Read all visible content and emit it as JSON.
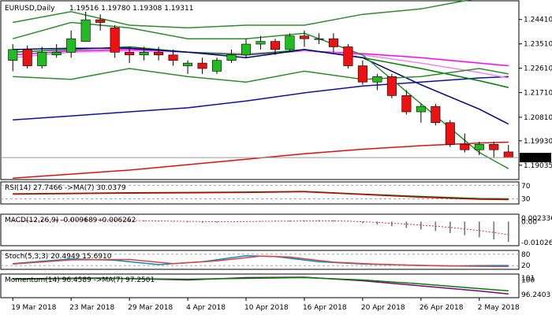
{
  "chart_data": {
    "type": "candlestick",
    "title": "EURUSD,Daily",
    "ohlc_text": "1.19516 1.19780 1.19308 1.19311",
    "current_price": 1.19311,
    "current_price_label": "1.19311",
    "ylim": [
      1.185,
      1.251
    ],
    "y_ticks": [
      1.2441,
      1.2351,
      1.2261,
      1.2171,
      1.208,
      1.1993,
      1.1903
    ],
    "y_tick_labels": [
      "1.24410",
      "1.23510",
      "1.22610",
      "1.21710",
      "1.20810",
      "1.19930",
      "1.19035"
    ],
    "x_labels": [
      {
        "i": 0,
        "text": "19 Mar 2018"
      },
      {
        "i": 4,
        "text": "23 Mar 2018"
      },
      {
        "i": 8,
        "text": "29 Mar 2018"
      },
      {
        "i": 12,
        "text": "4 Apr 2018"
      },
      {
        "i": 16,
        "text": "10 Apr 2018"
      },
      {
        "i": 20,
        "text": "16 Apr 2018"
      },
      {
        "i": 24,
        "text": "20 Apr 2018"
      },
      {
        "i": 28,
        "text": "26 Apr 2018"
      },
      {
        "i": 32,
        "text": "2 May 2018"
      }
    ],
    "candles": [
      {
        "o": 1.229,
        "h": 1.235,
        "l": 1.225,
        "c": 1.233
      },
      {
        "o": 1.233,
        "h": 1.2345,
        "l": 1.226,
        "c": 1.227
      },
      {
        "o": 1.227,
        "h": 1.234,
        "l": 1.226,
        "c": 1.232
      },
      {
        "o": 1.231,
        "h": 1.235,
        "l": 1.23,
        "c": 1.232
      },
      {
        "o": 1.232,
        "h": 1.24,
        "l": 1.23,
        "c": 1.237
      },
      {
        "o": 1.236,
        "h": 1.247,
        "l": 1.236,
        "c": 1.244
      },
      {
        "o": 1.244,
        "h": 1.246,
        "l": 1.24,
        "c": 1.243
      },
      {
        "o": 1.241,
        "h": 1.242,
        "l": 1.23,
        "c": 1.232
      },
      {
        "o": 1.232,
        "h": 1.234,
        "l": 1.228,
        "c": 1.231
      },
      {
        "o": 1.231,
        "h": 1.234,
        "l": 1.229,
        "c": 1.232
      },
      {
        "o": 1.232,
        "h": 1.234,
        "l": 1.229,
        "c": 1.231
      },
      {
        "o": 1.231,
        "h": 1.233,
        "l": 1.227,
        "c": 1.229
      },
      {
        "o": 1.227,
        "h": 1.229,
        "l": 1.224,
        "c": 1.228
      },
      {
        "o": 1.228,
        "h": 1.23,
        "l": 1.224,
        "c": 1.226
      },
      {
        "o": 1.225,
        "h": 1.23,
        "l": 1.224,
        "c": 1.229
      },
      {
        "o": 1.229,
        "h": 1.233,
        "l": 1.228,
        "c": 1.231
      },
      {
        "o": 1.231,
        "h": 1.237,
        "l": 1.23,
        "c": 1.235
      },
      {
        "o": 1.235,
        "h": 1.238,
        "l": 1.233,
        "c": 1.236
      },
      {
        "o": 1.236,
        "h": 1.237,
        "l": 1.231,
        "c": 1.233
      },
      {
        "o": 1.233,
        "h": 1.239,
        "l": 1.232,
        "c": 1.238
      },
      {
        "o": 1.238,
        "h": 1.24,
        "l": 1.234,
        "c": 1.237
      },
      {
        "o": 1.237,
        "h": 1.239,
        "l": 1.235,
        "c": 1.237
      },
      {
        "o": 1.237,
        "h": 1.239,
        "l": 1.232,
        "c": 1.234
      },
      {
        "o": 1.234,
        "h": 1.235,
        "l": 1.226,
        "c": 1.227
      },
      {
        "o": 1.227,
        "h": 1.229,
        "l": 1.22,
        "c": 1.221
      },
      {
        "o": 1.221,
        "h": 1.224,
        "l": 1.218,
        "c": 1.223
      },
      {
        "o": 1.223,
        "h": 1.224,
        "l": 1.215,
        "c": 1.216
      },
      {
        "o": 1.216,
        "h": 1.218,
        "l": 1.209,
        "c": 1.21
      },
      {
        "o": 1.21,
        "h": 1.213,
        "l": 1.206,
        "c": 1.212
      },
      {
        "o": 1.212,
        "h": 1.213,
        "l": 1.205,
        "c": 1.206
      },
      {
        "o": 1.206,
        "h": 1.207,
        "l": 1.197,
        "c": 1.198
      },
      {
        "o": 1.198,
        "h": 1.202,
        "l": 1.195,
        "c": 1.196
      },
      {
        "o": 1.196,
        "h": 1.199,
        "l": 1.194,
        "c": 1.198
      },
      {
        "o": 1.198,
        "h": 1.199,
        "l": 1.193,
        "c": 1.196
      },
      {
        "o": 1.1952,
        "h": 1.1978,
        "l": 1.1931,
        "c": 1.1931
      }
    ],
    "overlays": [
      {
        "color": "#1010a0",
        "points": [
          [
            0,
            1.207
          ],
          [
            4,
            1.2085
          ],
          [
            8,
            1.21
          ],
          [
            12,
            1.2115
          ],
          [
            16,
            1.214
          ],
          [
            20,
            1.217
          ],
          [
            24,
            1.2195
          ],
          [
            28,
            1.221
          ],
          [
            32,
            1.2225
          ],
          [
            34,
            1.223
          ]
        ]
      },
      {
        "color": "#dd1010",
        "points": [
          [
            0,
            1.1855
          ],
          [
            4,
            1.187
          ],
          [
            8,
            1.1885
          ],
          [
            12,
            1.1905
          ],
          [
            16,
            1.1925
          ],
          [
            20,
            1.1945
          ],
          [
            24,
            1.1962
          ],
          [
            28,
            1.1975
          ],
          [
            32,
            1.1985
          ],
          [
            34,
            1.1988
          ]
        ]
      },
      {
        "color": "#ff00ff",
        "points": [
          [
            0,
            1.231
          ],
          [
            4,
            1.2325
          ],
          [
            8,
            1.233
          ],
          [
            12,
            1.232
          ],
          [
            16,
            1.231
          ],
          [
            20,
            1.2325
          ],
          [
            24,
            1.2315
          ],
          [
            28,
            1.23
          ],
          [
            32,
            1.228
          ],
          [
            34,
            1.227
          ]
        ]
      },
      {
        "color": "#ee88ee",
        "points": [
          [
            0,
            1.23
          ],
          [
            4,
            1.232
          ],
          [
            8,
            1.2325
          ],
          [
            12,
            1.232
          ],
          [
            16,
            1.2315
          ],
          [
            20,
            1.2325
          ],
          [
            24,
            1.231
          ],
          [
            28,
            1.228
          ],
          [
            32,
            1.2245
          ],
          [
            34,
            1.2225
          ]
        ]
      },
      {
        "color": "#008000",
        "points": [
          [
            0,
            1.232
          ],
          [
            4,
            1.233
          ],
          [
            8,
            1.234
          ],
          [
            12,
            1.232
          ],
          [
            16,
            1.231
          ],
          [
            20,
            1.233
          ],
          [
            24,
            1.23
          ],
          [
            28,
            1.226
          ],
          [
            32,
            1.2215
          ],
          [
            34,
            1.219
          ]
        ]
      },
      {
        "color": "#000080",
        "points": [
          [
            0,
            1.233
          ],
          [
            4,
            1.2335
          ],
          [
            8,
            1.2335
          ],
          [
            12,
            1.232
          ],
          [
            16,
            1.23
          ],
          [
            20,
            1.233
          ],
          [
            24,
            1.23
          ],
          [
            28,
            1.22
          ],
          [
            32,
            1.211
          ],
          [
            34,
            1.2055
          ]
        ]
      },
      {
        "color": "#2e8b2e",
        "points": [
          [
            0,
            1.237
          ],
          [
            4,
            1.243
          ],
          [
            8,
            1.241
          ],
          [
            12,
            1.237
          ],
          [
            16,
            1.237
          ],
          [
            20,
            1.239
          ],
          [
            24,
            1.231
          ],
          [
            28,
            1.213
          ],
          [
            32,
            1.195
          ],
          [
            34,
            1.189
          ]
        ]
      },
      {
        "color": "#2e8b2e",
        "points": [
          [
            0,
            1.243
          ],
          [
            4,
            1.247
          ],
          [
            8,
            1.242
          ],
          [
            12,
            1.241
          ],
          [
            16,
            1.242
          ],
          [
            20,
            1.242
          ],
          [
            24,
            1.246
          ],
          [
            28,
            1.248
          ],
          [
            30,
            1.25
          ],
          [
            32,
            1.252
          ]
        ]
      },
      {
        "color": "#2e8b2e",
        "points": [
          [
            0,
            1.223
          ],
          [
            4,
            1.222
          ],
          [
            8,
            1.226
          ],
          [
            12,
            1.223
          ],
          [
            16,
            1.221
          ],
          [
            20,
            1.225
          ],
          [
            24,
            1.222
          ],
          [
            28,
            1.223
          ],
          [
            32,
            1.226
          ],
          [
            34,
            1.224
          ]
        ]
      }
    ],
    "panels": [
      {
        "label": "RSI(14) 27.7466 ->MA(7) 30.0379",
        "ticks": [
          {
            "text": "70",
            "v": 70
          },
          {
            "text": "30",
            "v": 30
          }
        ],
        "lines": [
          {
            "color": "#008000",
            "points": [
              [
                0,
                45
              ],
              [
                8,
                48
              ],
              [
                16,
                50
              ],
              [
                20,
                52
              ],
              [
                24,
                44
              ],
              [
                28,
                37
              ],
              [
                32,
                31
              ],
              [
                34,
                30
              ]
            ]
          },
          {
            "color": "#c00000",
            "points": [
              [
                0,
                44
              ],
              [
                8,
                47
              ],
              [
                16,
                49
              ],
              [
                20,
                51
              ],
              [
                24,
                43
              ],
              [
                28,
                35
              ],
              [
                32,
                29
              ],
              [
                34,
                27.7
              ]
            ]
          }
        ]
      },
      {
        "label": "MACD(12,26,9) -0.009689 -0.006262",
        "ticks": [
          {
            "text": "0.002336",
            "v": 0.002336
          },
          {
            "text": "0.00",
            "v": 0
          },
          {
            "text": "-0.010262",
            "v": -0.010262
          }
        ],
        "bars": [
          0.0005,
          0.0008,
          0.001,
          0.0012,
          0.0015,
          0.0017,
          0.0016,
          0.0012,
          0.0008,
          0.0005,
          0.0002,
          -0.0002,
          -0.0004,
          -0.0006,
          -0.0005,
          -0.0002,
          0.0001,
          0.0003,
          0.0004,
          0.0005,
          0.0006,
          0.0007,
          0.0006,
          0.0003,
          -0.0008,
          -0.0015,
          -0.0022,
          -0.003,
          -0.0038,
          -0.0045,
          -0.0055,
          -0.0065,
          -0.0075,
          -0.0085,
          -0.0097
        ],
        "signal": [
          0.0003,
          0.0004,
          0.0005,
          0.0006,
          0.0007,
          0.0007,
          0.0007,
          0.0006,
          0.0005,
          0.0004,
          0.0003,
          0.0002,
          0.0001,
          0.0,
          -0.0001,
          -0.0001,
          0.0,
          0.0001,
          0.0002,
          0.0002,
          0.0003,
          0.0003,
          0.0003,
          0.0002,
          -0.0001,
          -0.0004,
          -0.0008,
          -0.0012,
          -0.0017,
          -0.0022,
          -0.0028,
          -0.0035,
          -0.0043,
          -0.0052,
          -0.0063
        ]
      },
      {
        "label": "Stoch(5,3,3) 20.4949 15.6910",
        "ticks": [
          {
            "text": "80",
            "v": 80
          },
          {
            "text": "20",
            "v": 20
          }
        ],
        "lines": [
          {
            "color": "#0090c0",
            "points": [
              [
                0,
                30
              ],
              [
                4,
                55
              ],
              [
                7,
                48
              ],
              [
                10,
                25
              ],
              [
                13,
                40
              ],
              [
                16,
                72
              ],
              [
                18,
                68
              ],
              [
                21,
                40
              ],
              [
                24,
                28
              ],
              [
                27,
                22
              ],
              [
                30,
                18
              ],
              [
                32,
                20
              ],
              [
                34,
                20.5
              ]
            ]
          },
          {
            "color": "#e04040",
            "points": [
              [
                0,
                28
              ],
              [
                4,
                50
              ],
              [
                8,
                52
              ],
              [
                11,
                30
              ],
              [
                14,
                45
              ],
              [
                17,
                70
              ],
              [
                19,
                65
              ],
              [
                22,
                38
              ],
              [
                25,
                27
              ],
              [
                28,
                21
              ],
              [
                31,
                17
              ],
              [
                33,
                16
              ],
              [
                34,
                15.7
              ]
            ]
          }
        ]
      },
      {
        "label": "Momentum(14) 96.4589 ->MA(7) 97.2501",
        "ticks": [
          {
            "text": "101",
            "v": 101
          },
          {
            "text": "100",
            "v": 100
          },
          {
            "text": "96.2403",
            "v": 96.2403
          }
        ],
        "lines": [
          {
            "color": "#800080",
            "points": [
              [
                0,
                100.3
              ],
              [
                6,
                100.5
              ],
              [
                12,
                100.0
              ],
              [
                16,
                100.6
              ],
              [
                20,
                100.7
              ],
              [
                24,
                99.8
              ],
              [
                28,
                98.5
              ],
              [
                32,
                97.2
              ],
              [
                34,
                96.46
              ]
            ]
          },
          {
            "color": "#008000",
            "points": [
              [
                0,
                100.2
              ],
              [
                6,
                100.4
              ],
              [
                12,
                100.2
              ],
              [
                16,
                100.4
              ],
              [
                20,
                100.6
              ],
              [
                24,
                100.0
              ],
              [
                28,
                99.0
              ],
              [
                32,
                97.8
              ],
              [
                34,
                97.25
              ]
            ]
          }
        ]
      }
    ]
  }
}
